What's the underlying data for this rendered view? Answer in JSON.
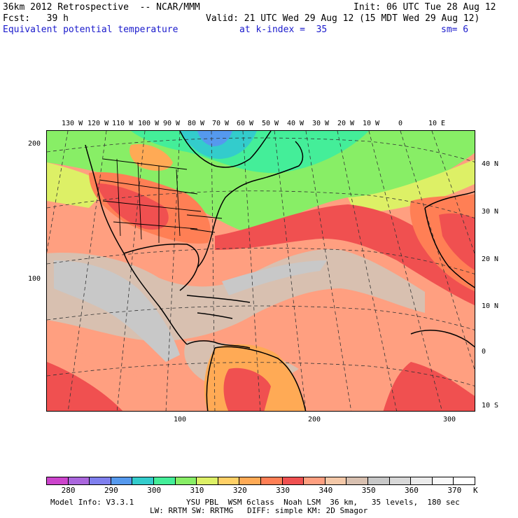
{
  "header": {
    "line1_left": "36km 2012 Retrospective  -- NCAR/MMM",
    "line1_right": "Init: 06 UTC Tue 28 Aug 12",
    "line2_left": "Fcst:   39 h",
    "line2_right": "Valid: 21 UTC Wed 29 Aug 12 (15 MDT Wed 29 Aug 12)",
    "field_name": "Equivalent potential temperature",
    "level_info": "at k-index =  35",
    "smoothing": "sm= 6"
  },
  "map": {
    "lon_labels": [
      "130 W",
      "120 W",
      "110 W",
      "100 W",
      "90 W",
      "80 W",
      "70 W",
      "60 W",
      "50 W",
      "40 W",
      "30 W",
      "20 W",
      "10 W",
      "0",
      "10 E"
    ],
    "lat_labels": [
      "40 N",
      "30 N",
      "20 N",
      "10 N",
      "0",
      "10 S"
    ],
    "grid_y_labels": [
      "200",
      "100"
    ],
    "grid_x_labels": [
      "100",
      "200",
      "300"
    ]
  },
  "colorbar": {
    "colors": [
      "#cc44cc",
      "#aa66dd",
      "#7f7fee",
      "#5599ee",
      "#33cccc",
      "#44ee99",
      "#88ee66",
      "#ddf066",
      "#ffd066",
      "#ffaa55",
      "#ff7f55",
      "#f05050",
      "#ff9f80",
      "#f4c8a8",
      "#d8c0b0",
      "#c8c8c8",
      "#d8d8d8",
      "#ebebeb",
      "#f8f8f8",
      "#ffffff"
    ],
    "tick_labels": [
      "280",
      "290",
      "300",
      "310",
      "320",
      "330",
      "340",
      "350",
      "360",
      "370"
    ],
    "unit": "K"
  },
  "footer": {
    "line1_left": "Model Info: V3.3.1",
    "line1_right": "YSU PBL  WSM 6class  Noah LSM  36 km,   35 levels,  180 sec",
    "line2": "LW: RRTM SW: RRTMG   DIFF: simple KM: 2D Smagor"
  }
}
